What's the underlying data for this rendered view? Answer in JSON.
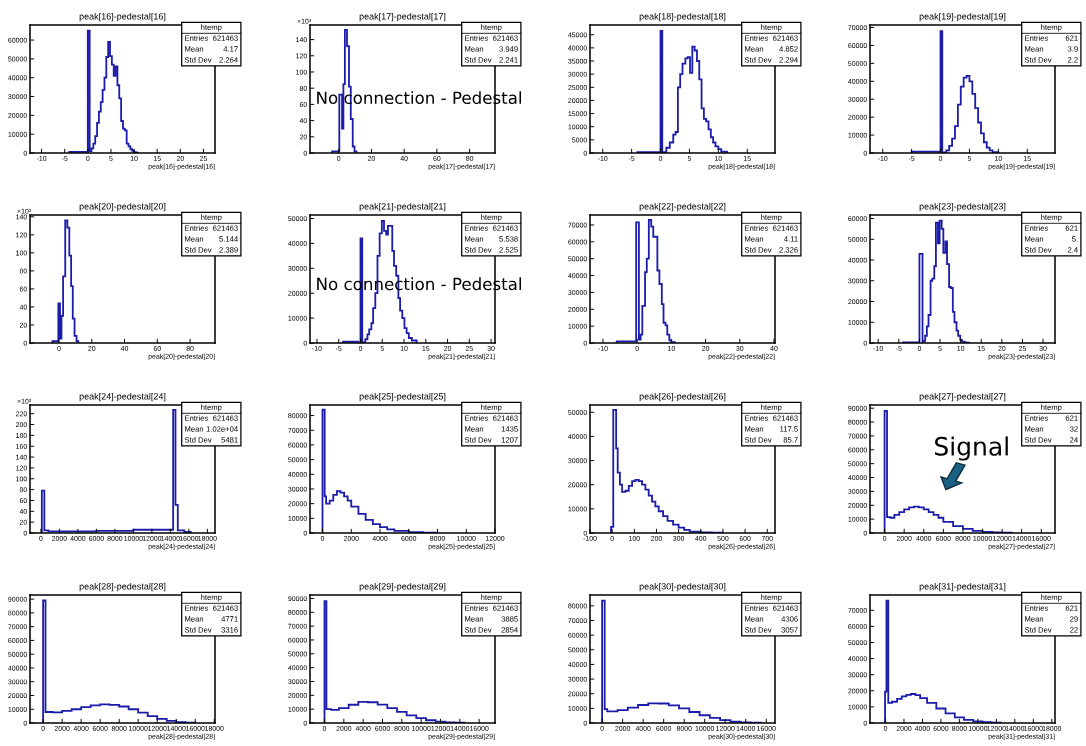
{
  "chart_data": [
    {
      "type": "histogram",
      "title": "peak[16]-pedestal[16]",
      "xlabel": "peak[16]-pedestal[16]",
      "color": "#1c1caa",
      "xlim": [
        -12.5,
        27.5
      ],
      "xticks": [
        -10,
        -5,
        0,
        5,
        10,
        15,
        20,
        25
      ],
      "ylim": [
        0,
        68000
      ],
      "yticks": [
        0,
        10000,
        20000,
        30000,
        40000,
        50000,
        60000
      ],
      "bins": [
        -4,
        0,
        0.4,
        0.8,
        1.2,
        1.6,
        2.0,
        2.4,
        2.8,
        3.2,
        3.6,
        4.0,
        4.4,
        4.8,
        5.2,
        5.6,
        6.0,
        6.4,
        6.8,
        7.2,
        7.6,
        8.0,
        8.4,
        8.8,
        9.2,
        9.6,
        10.0,
        10.4,
        10.8
      ],
      "values": [
        600,
        65000,
        1000,
        2500,
        5000,
        9000,
        16000,
        22000,
        27000,
        33500,
        40000,
        51000,
        59000,
        51500,
        47000,
        41000,
        46000,
        36000,
        29000,
        17000,
        13000,
        12000,
        5000,
        3500,
        2000,
        1200,
        500,
        200
      ],
      "annotations": [
        "htemp",
        "Entries",
        "621463",
        "Mean",
        "4.17",
        "Std Dev",
        "2.264"
      ]
    },
    {
      "type": "histogram",
      "title": "peak[17]-pedestal[17]",
      "xlabel": "peak[17]-pedestal[17]",
      "ylabel": "×10³",
      "color": "#1c1caa",
      "xlim": [
        -17.5,
        95.5
      ],
      "xticks": [
        0,
        20,
        40,
        60,
        80
      ],
      "ylim": [
        0,
        158
      ],
      "yticks": [
        0,
        20,
        40,
        60,
        80,
        100,
        120,
        140
      ],
      "bins": [
        -4,
        0.4,
        2.1,
        2.9,
        3.8,
        5.1,
        6.3,
        7.4,
        8.6,
        9.7,
        10.9
      ],
      "values": [
        2,
        72,
        30,
        85,
        152,
        132,
        82,
        42,
        8,
        2
      ],
      "annotations": [
        "htemp",
        "Entries",
        "621463",
        "Mean",
        "3.949",
        "Std Dev",
        "2.241",
        "No connection - Pedestal"
      ]
    },
    {
      "type": "histogram",
      "title": "peak[18]-pedestal[18]",
      "xlabel": "peak[18]-pedestal[18]",
      "color": "#1c1caa",
      "xlim": [
        -12.2,
        19.8
      ],
      "xticks": [
        -10,
        -5,
        0,
        5,
        10,
        15
      ],
      "ylim": [
        0,
        48700
      ],
      "yticks": [
        0,
        5000,
        10000,
        15000,
        20000,
        25000,
        30000,
        35000,
        40000,
        45000
      ],
      "bins": [
        -4,
        0,
        0.3,
        1.0,
        1.6,
        2.2,
        2.6,
        3.0,
        3.4,
        3.8,
        4.3,
        4.7,
        5.1,
        5.5,
        5.9,
        6.3,
        6.7,
        7.1,
        7.5,
        7.9,
        8.3,
        8.7,
        9.1,
        9.5,
        10,
        10.5,
        11.5
      ],
      "values": [
        300,
        46500,
        300,
        2000,
        4000,
        7000,
        8000,
        25000,
        30000,
        34000,
        36000,
        36500,
        30500,
        40500,
        39000,
        35000,
        28000,
        17000,
        13000,
        12000,
        9000,
        6000,
        4000,
        2500,
        1500,
        500
      ],
      "annotations": [
        "htemp",
        "Entries",
        "621463",
        "Mean",
        "4.852",
        "Std Dev",
        "2.294"
      ]
    },
    {
      "type": "histogram",
      "title": "peak[19]-pedestal[19]",
      "xlabel": "peak[19]-pedestal[19]",
      "color": "#1c1caa",
      "xlim": [
        -12.2,
        19.8
      ],
      "xticks": [
        -10,
        -5,
        0,
        5,
        10,
        15
      ],
      "ylim": [
        0,
        71400
      ],
      "yticks": [
        0,
        10000,
        20000,
        30000,
        40000,
        50000,
        60000,
        70000
      ],
      "bins": [
        -5,
        0,
        0.3,
        1,
        1.5,
        2,
        2.5,
        3,
        3.5,
        4,
        4.5,
        5,
        5.5,
        6,
        6.5,
        7,
        7.5,
        8,
        8.5,
        9,
        10
      ],
      "values": [
        800,
        68000,
        300,
        1500,
        4000,
        8000,
        15000,
        27000,
        37000,
        42000,
        43000,
        40000,
        33000,
        25000,
        17000,
        11000,
        6000,
        3000,
        1500,
        500
      ],
      "annotations": [
        "htemp",
        "Entries",
        "621",
        "Mean",
        "3.9",
        "Std Dev",
        "2.2"
      ]
    },
    {
      "type": "histogram",
      "title": "peak[20]-pedestal[20]",
      "xlabel": "peak[20]-pedestal[20]",
      "ylabel": "×10³",
      "color": "#1c1caa",
      "xlim": [
        -17.7,
        95.2
      ],
      "xticks": [
        0,
        20,
        40,
        60,
        80
      ],
      "ylim": [
        0,
        142
      ],
      "yticks": [
        0,
        20,
        40,
        60,
        80,
        100,
        120,
        140
      ],
      "bins": [
        -4,
        -0.4,
        0.6,
        1.5,
        2.5,
        3.8,
        5.1,
        6.3,
        7.4,
        8.4,
        9.5,
        10.7,
        11.8
      ],
      "values": [
        2,
        44,
        5,
        30,
        74,
        136,
        128,
        97,
        63,
        27,
        8,
        2
      ],
      "annotations": [
        "htemp",
        "Entries",
        "621463",
        "Mean",
        "5.144",
        "Std Dev",
        "2.389"
      ]
    },
    {
      "type": "histogram",
      "title": "peak[21]-pedestal[21]",
      "xlabel": "peak[21]-pedestal[21]",
      "color": "#1c1caa",
      "xlim": [
        -11.6,
        30.9
      ],
      "xticks": [
        -10,
        -5,
        0,
        5,
        10,
        15,
        20,
        25,
        30
      ],
      "ylim": [
        0,
        51400
      ],
      "yticks": [
        0,
        10000,
        20000,
        30000,
        40000,
        50000
      ],
      "bins": [
        -4,
        -0.5,
        0,
        0.4,
        1.1,
        1.6,
        2.0,
        2.5,
        2.9,
        3.4,
        3.9,
        4.4,
        4.9,
        5.4,
        5.9,
        6.3,
        6.8,
        7.3,
        7.7,
        8.2,
        8.7,
        9.1,
        9.6,
        10.1,
        10.6,
        11.1,
        11.8,
        12.9
      ],
      "values": [
        500,
        0,
        42000,
        200,
        1500,
        3500,
        5500,
        8000,
        14000,
        20000,
        35000,
        44000,
        49000,
        45000,
        43500,
        47000,
        47000,
        37000,
        31000,
        27000,
        18000,
        13000,
        10000,
        6000,
        4000,
        2000,
        1000
      ],
      "annotations": [
        "htemp",
        "Entries",
        "621463",
        "Mean",
        "5.538",
        "Std Dev",
        "2.525",
        "No connection - Pedestal"
      ]
    },
    {
      "type": "histogram",
      "title": "peak[22]-pedestal[22]",
      "xlabel": "peak[22]-pedestal[22]",
      "color": "#1c1caa",
      "xlim": [
        -13.8,
        40.3
      ],
      "xticks": [
        -10,
        0,
        10,
        20,
        30,
        40
      ],
      "ylim": [
        0,
        75900
      ],
      "yticks": [
        0,
        10000,
        20000,
        30000,
        40000,
        50000,
        60000,
        70000
      ],
      "bins": [
        -6,
        -0.3,
        0.5,
        1.0,
        1.5,
        2.3,
        2.8,
        3.4,
        4.1,
        4.7,
        5.9,
        6.5,
        7.2,
        7.7,
        8.3,
        8.8,
        9.4,
        10,
        11
      ],
      "values": [
        1000,
        71500,
        2000,
        5000,
        22000,
        42000,
        50000,
        73000,
        69000,
        63000,
        43000,
        35000,
        23000,
        12000,
        10500,
        5000,
        1500,
        500
      ],
      "annotations": [
        "htemp",
        "Entries",
        "621463",
        "Mean",
        "4.11",
        "Std Dev",
        "2.326"
      ]
    },
    {
      "type": "histogram",
      "title": "peak[23]-pedestal[23]",
      "xlabel": "peak[23]-pedestal[23]",
      "color": "#1c1caa",
      "xlim": [
        -12,
        32.9
      ],
      "xticks": [
        -10,
        -5,
        0,
        5,
        10,
        15,
        20,
        25,
        30
      ],
      "ylim": [
        0,
        61700
      ],
      "yticks": [
        0,
        10000,
        20000,
        30000,
        40000,
        50000,
        60000
      ],
      "bins": [
        -4,
        0,
        0.75,
        1.0,
        1.4,
        1.8,
        2.2,
        2.7,
        3.1,
        3.6,
        4.0,
        4.5,
        4.9,
        5.4,
        5.8,
        6.3,
        6.7,
        7.2,
        7.6,
        8.1,
        8.5,
        9.0,
        9.4,
        9.9,
        10.3,
        10.8,
        11.2,
        12.0
      ],
      "values": [
        300,
        43000,
        300,
        1000,
        3500,
        8000,
        13500,
        30000,
        31000,
        37000,
        58000,
        48000,
        59000,
        55000,
        43500,
        49000,
        38000,
        27000,
        26500,
        15000,
        10000,
        6000,
        3500,
        1500,
        700,
        400,
        200
      ],
      "annotations": [
        "htemp",
        "Entries",
        "621",
        "Mean",
        "5.",
        "Std Dev",
        "2.4"
      ]
    },
    {
      "type": "histogram",
      "title": "peak[24]-pedestal[24]",
      "xlabel": "peak[24]-pedestal[24]",
      "ylabel": "×10³",
      "color": "#1c1caa",
      "xlim": [
        -1180,
        18825
      ],
      "xticks": [
        0,
        2000,
        4000,
        6000,
        8000,
        10000,
        12000,
        14000,
        16000,
        18000
      ],
      "ylim": [
        0,
        236
      ],
      "yticks": [
        0,
        20,
        40,
        60,
        80,
        100,
        120,
        140,
        160,
        180,
        200,
        220
      ],
      "bins": [
        100,
        370,
        800,
        2000,
        6000,
        10000,
        14300,
        14550,
        14800,
        15500,
        16200
      ],
      "values": [
        78,
        5,
        3,
        3,
        4,
        6,
        227,
        52,
        5,
        2
      ],
      "annotations": [
        "htemp",
        "Entries",
        "621463",
        "Mean",
        "1.02e+04",
        "Std Dev",
        "5481"
      ]
    },
    {
      "type": "histogram",
      "title": "peak[25]-pedestal[25]",
      "xlabel": "peak[25]-pedestal[25]",
      "color": "#1c1caa",
      "xlim": [
        -870,
        12000
      ],
      "xticks": [
        0,
        2000,
        4000,
        6000,
        8000,
        10000,
        12000
      ],
      "ylim": [
        0,
        87200
      ],
      "yticks": [
        0,
        10000,
        20000,
        30000,
        40000,
        50000,
        60000,
        70000,
        80000
      ],
      "bins": [
        0,
        150,
        250,
        500,
        750,
        1000,
        1250,
        1500,
        1750,
        2000,
        2500,
        3000,
        3500,
        4000,
        4500,
        5000,
        6000,
        7000,
        8000
      ],
      "values": [
        84000,
        25000,
        20000,
        22000,
        26000,
        28500,
        27500,
        25000,
        22000,
        18000,
        13000,
        9000,
        6000,
        4000,
        2500,
        1500,
        500,
        200
      ],
      "annotations": [
        "htemp",
        "Entries",
        "621463",
        "Mean",
        "1435",
        "Std Dev",
        "1207"
      ]
    },
    {
      "type": "histogram",
      "title": "peak[26]-pedestal[26]",
      "xlabel": "peak[26]-pedestal[26]",
      "color": "#1c1caa",
      "xlim": [
        -100,
        735
      ],
      "xticks": [
        -100,
        0,
        100,
        200,
        300,
        400,
        500,
        600,
        700
      ],
      "ylim": [
        0,
        53000
      ],
      "yticks": [
        0,
        10000,
        20000,
        30000,
        40000,
        50000
      ],
      "bins": [
        -5,
        5,
        18,
        25,
        35,
        45,
        60,
        75,
        90,
        105,
        120,
        135,
        150,
        165,
        180,
        195,
        210,
        230,
        250,
        275,
        300,
        325,
        350,
        400,
        450,
        500
      ],
      "values": [
        2500,
        51000,
        35000,
        25000,
        20000,
        17000,
        17500,
        19500,
        21500,
        22000,
        21500,
        20000,
        18000,
        15500,
        13000,
        11000,
        9000,
        7000,
        5000,
        3500,
        2200,
        1300,
        600,
        200,
        100
      ],
      "annotations": [
        "htemp",
        "Entries",
        "621463",
        "Mean",
        "117.5",
        "Std Dev",
        "85.7"
      ]
    },
    {
      "type": "histogram",
      "title": "peak[27]-pedestal[27]",
      "xlabel": "peak[27]-pedestal[27]",
      "color": "#1c1caa",
      "xlim": [
        -1490,
        17400
      ],
      "xticks": [
        0,
        2000,
        4000,
        6000,
        8000,
        10000,
        12000,
        14000,
        16000
      ],
      "ylim": [
        0,
        92300
      ],
      "yticks": [
        0,
        10000,
        20000,
        30000,
        40000,
        50000,
        60000,
        70000,
        80000,
        90000
      ],
      "bins": [
        0,
        250,
        600,
        1000,
        1500,
        2000,
        2500,
        3000,
        3500,
        4000,
        4500,
        5000,
        5500,
        6000,
        7000,
        8000,
        9000,
        10000,
        11000,
        12000,
        13000
      ],
      "values": [
        88000,
        11500,
        11000,
        13000,
        15000,
        17000,
        18500,
        19000,
        18500,
        17000,
        15000,
        13000,
        11000,
        8000,
        5000,
        3000,
        1600,
        800,
        400,
        200
      ],
      "annotations": [
        "htemp",
        "Entries",
        "621",
        "Mean",
        "32",
        "Std Dev",
        "24",
        "Signal"
      ]
    },
    {
      "type": "histogram",
      "title": "peak[28]-pedestal[28]",
      "xlabel": "peak[28]-pedestal[28]",
      "color": "#1c1caa",
      "xlim": [
        -1380,
        18080
      ],
      "xticks": [
        0,
        2000,
        4000,
        6000,
        8000,
        10000,
        12000,
        14000,
        16000,
        18000
      ],
      "ylim": [
        0,
        93000
      ],
      "yticks": [
        0,
        10000,
        20000,
        30000,
        40000,
        50000,
        60000,
        70000,
        80000,
        90000
      ],
      "bins": [
        0,
        250,
        1000,
        2000,
        3000,
        4000,
        5000,
        6000,
        7000,
        8000,
        9000,
        10000,
        11000,
        12000,
        13000,
        14000,
        15000,
        16000
      ],
      "values": [
        89000,
        8000,
        7700,
        8800,
        10000,
        11500,
        12800,
        13500,
        13200,
        12000,
        10000,
        7500,
        5000,
        3000,
        1500,
        600,
        200
      ],
      "annotations": [
        "htemp",
        "Entries",
        "621463",
        "Mean",
        "4771",
        "Std Dev",
        "3316"
      ]
    },
    {
      "type": "histogram",
      "title": "peak[29]-pedestal[29]",
      "xlabel": "peak[29]-pedestal[29]",
      "color": "#1c1caa",
      "xlim": [
        -1500,
        17640
      ],
      "xticks": [
        0,
        2000,
        4000,
        6000,
        8000,
        10000,
        12000,
        14000,
        16000
      ],
      "ylim": [
        0,
        92500
      ],
      "yticks": [
        0,
        10000,
        20000,
        30000,
        40000,
        50000,
        60000,
        70000,
        80000,
        90000
      ],
      "bins": [
        0,
        200,
        700,
        1500,
        2500,
        3500,
        4500,
        5500,
        6500,
        7500,
        8500,
        9500,
        10500,
        11500,
        12500,
        13500,
        14500
      ],
      "values": [
        88000,
        10000,
        9500,
        10800,
        13200,
        15300,
        15000,
        13300,
        10800,
        8000,
        5500,
        3500,
        2000,
        1000,
        500,
        200
      ],
      "annotations": [
        "htemp",
        "Entries",
        "621463",
        "Mean",
        "3885",
        "Std Dev",
        "2854"
      ]
    },
    {
      "type": "histogram",
      "title": "peak[30]-pedestal[30]",
      "xlabel": "peak[30]-pedestal[30]",
      "color": "#1c1caa",
      "xlim": [
        -1180,
        16850
      ],
      "xticks": [
        0,
        2000,
        4000,
        6000,
        8000,
        10000,
        12000,
        14000,
        16000
      ],
      "ylim": [
        0,
        87400
      ],
      "yticks": [
        0,
        10000,
        20000,
        30000,
        40000,
        50000,
        60000,
        70000,
        80000
      ],
      "bins": [
        0,
        250,
        500,
        1500,
        2500,
        3500,
        4500,
        5500,
        6500,
        7500,
        8500,
        9500,
        10500,
        11500,
        12500,
        13500,
        14500,
        15500
      ],
      "values": [
        83500,
        9500,
        8000,
        8800,
        10500,
        12300,
        13400,
        13300,
        12000,
        10000,
        7500,
        5300,
        3500,
        2000,
        1000,
        400,
        200
      ],
      "annotations": [
        "htemp",
        "Entries",
        "621463",
        "Mean",
        "4306",
        "Std Dev",
        "3057"
      ]
    },
    {
      "type": "histogram",
      "title": "peak[31]-pedestal[31]",
      "xlabel": "peak[31]-pedestal[31]",
      "color": "#1c1caa",
      "xlim": [
        -1680,
        18350
      ],
      "xticks": [
        0,
        2000,
        4000,
        6000,
        8000,
        10000,
        12000,
        14000,
        16000,
        18000
      ],
      "ylim": [
        0,
        79500
      ],
      "yticks": [
        0,
        10000,
        20000,
        30000,
        40000,
        50000,
        60000,
        70000
      ],
      "bins": [
        -50,
        100,
        300,
        700,
        1250,
        1750,
        2250,
        2750,
        3250,
        3750,
        4500,
        5500,
        6500,
        7500,
        8500,
        9500,
        10500,
        11500,
        12500
      ],
      "values": [
        19500,
        76000,
        12500,
        13200,
        15000,
        16500,
        17500,
        18000,
        17300,
        15500,
        12500,
        9000,
        6000,
        3500,
        2000,
        1000,
        500,
        200
      ],
      "annotations": [
        "htemp",
        "Entries",
        "621",
        "Mean",
        "29",
        "Std Dev",
        "22"
      ]
    }
  ]
}
